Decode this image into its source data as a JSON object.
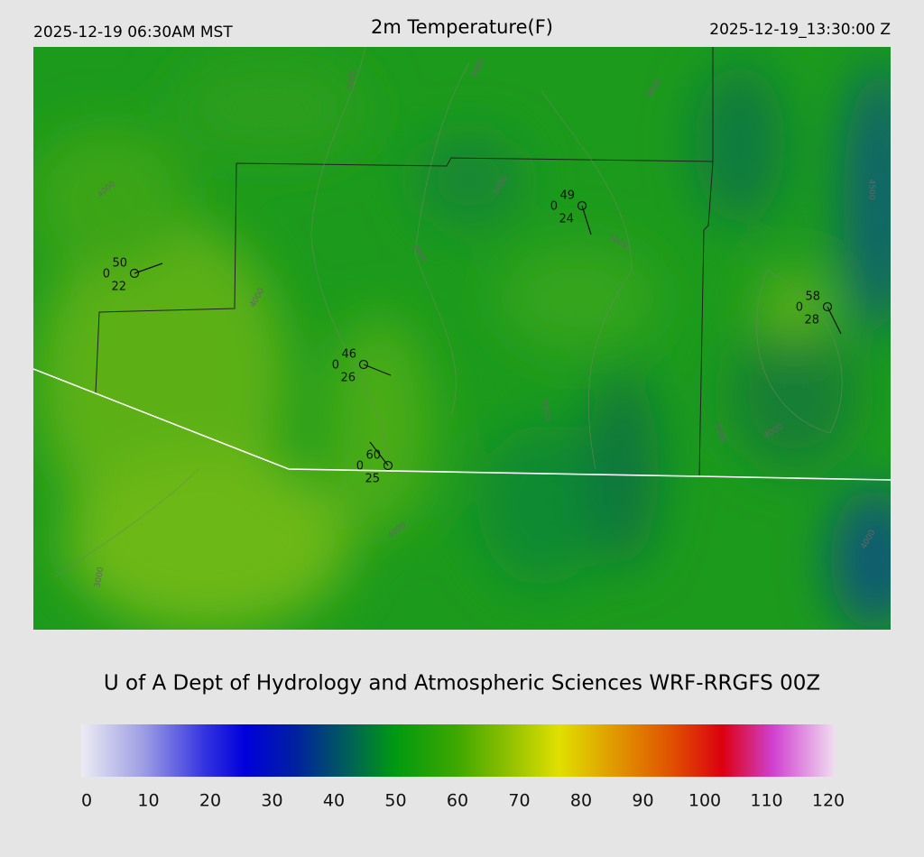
{
  "header": {
    "left": "2025-12-19 06:30AM MST",
    "title": "2m Temperature(F)",
    "right": "2025-12-19_13:30:00 Z"
  },
  "stations": [
    {
      "temp": "50",
      "mid": "0",
      "dew": "22"
    },
    {
      "temp": "49",
      "mid": "0",
      "dew": "24"
    },
    {
      "temp": "58",
      "mid": "0",
      "dew": "28"
    },
    {
      "temp": "46",
      "mid": "0",
      "dew": "26"
    },
    {
      "temp": "60",
      "mid": "0",
      "dew": "25"
    }
  ],
  "contour_labels": [
    "4000",
    "4000",
    "5000",
    "4500",
    "4000",
    "4000",
    "5000",
    "5000",
    "5000",
    "4000",
    "4500",
    "3000",
    "4000",
    "5000",
    "4000"
  ],
  "footer": "U of A Dept of Hydrology and Atmospheric Sciences WRF-RRGFS 00Z",
  "colorbar": {
    "lim": [
      0,
      120
    ],
    "ticks": [
      0,
      10,
      20,
      30,
      40,
      50,
      60,
      70,
      80,
      90,
      100,
      110,
      120
    ],
    "stops": [
      [
        0,
        "#ececf4"
      ],
      [
        10,
        "#9c9ce4"
      ],
      [
        20,
        "#3030e0"
      ],
      [
        26,
        "#0000dc"
      ],
      [
        34,
        "#0020a0"
      ],
      [
        42,
        "#005c5c"
      ],
      [
        50,
        "#009a10"
      ],
      [
        60,
        "#40a800"
      ],
      [
        68,
        "#90c000"
      ],
      [
        76,
        "#e0e000"
      ],
      [
        84,
        "#e0a000"
      ],
      [
        94,
        "#e05000"
      ],
      [
        102,
        "#dc0010"
      ],
      [
        110,
        "#d040d0"
      ],
      [
        120,
        "#f0e0f0"
      ]
    ]
  }
}
